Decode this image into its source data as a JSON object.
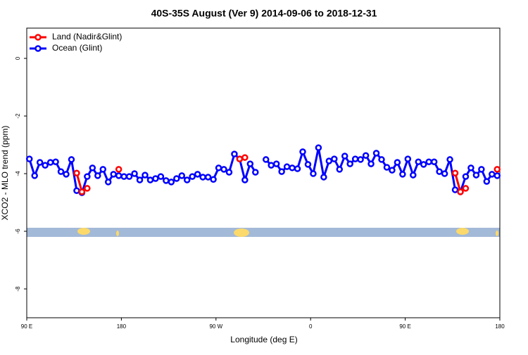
{
  "chart_data": {
    "type": "line",
    "title": "40S-35S August (Ver 9)   2014-09-06 to 2018-12-31",
    "x_label": "Longitude (deg E)",
    "y_label": "XCO2 - MLO trend (ppm)",
    "xlim": [
      90,
      540
    ],
    "xticks": [
      {
        "value": 90,
        "label": "90 E"
      },
      {
        "value": 180,
        "label": "180"
      },
      {
        "value": 270,
        "label": "90 W"
      },
      {
        "value": 360,
        "label": "0"
      },
      {
        "value": 450,
        "label": "90 E"
      },
      {
        "value": 540,
        "label": "180"
      }
    ],
    "ylim": [
      -9,
      1.05
    ],
    "yticks": [
      0,
      -2,
      -4,
      -6,
      -8
    ],
    "grid": false,
    "legend": "top-left",
    "x": [
      92.5,
      97.5,
      102.5,
      107.5,
      112.5,
      117.5,
      122.5,
      127.5,
      132.5,
      137.5,
      142.5,
      147.5,
      152.5,
      157.5,
      162.5,
      167.5,
      172.5,
      177.5,
      182.5,
      187.5,
      192.5,
      197.5,
      202.5,
      207.5,
      212.5,
      217.5,
      222.5,
      227.5,
      232.5,
      237.5,
      242.5,
      247.5,
      252.5,
      257.5,
      262.5,
      267.5,
      272.5,
      277.5,
      282.5,
      287.5,
      292.5,
      297.5,
      302.5,
      307.5,
      312.5,
      317.5,
      322.5,
      327.5,
      332.5,
      337.5,
      342.5,
      347.5,
      352.5,
      357.5,
      362.5,
      367.5,
      372.5,
      377.5,
      382.5,
      387.5,
      392.5,
      397.5,
      402.5,
      407.5,
      412.5,
      417.5,
      422.5,
      427.5,
      432.5,
      437.5,
      442.5,
      447.5,
      452.5,
      457.5,
      462.5,
      467.5,
      472.5,
      477.5,
      482.5,
      487.5,
      492.5,
      497.5,
      502.5,
      507.5,
      512.5,
      517.5,
      522.5,
      527.5,
      532.5,
      537.5
    ],
    "series": [
      {
        "name": "Ocean (Glint)",
        "color": "#0000ff",
        "values": [
          -3.49,
          -4.07,
          -3.61,
          -3.71,
          -3.61,
          -3.59,
          -3.93,
          -4.02,
          -3.51,
          -4.59,
          -4.66,
          -4.1,
          -3.8,
          -4.07,
          -3.85,
          -4.29,
          -4.02,
          -4.07,
          -4.1,
          -4.1,
          -4.0,
          -4.22,
          -4.05,
          -4.22,
          -4.17,
          -4.1,
          -4.24,
          -4.29,
          -4.17,
          -4.07,
          -4.22,
          -4.1,
          -4.02,
          -4.12,
          -4.12,
          -4.2,
          -3.8,
          -3.85,
          -3.95,
          -3.32,
          -3.49,
          -4.22,
          -3.66,
          -3.95,
          null,
          -3.51,
          -3.71,
          -3.66,
          -3.93,
          -3.76,
          -3.8,
          -3.83,
          -3.24,
          -3.68,
          -4.0,
          -3.1,
          -4.12,
          -3.56,
          -3.49,
          -3.85,
          -3.39,
          -3.66,
          -3.49,
          -3.51,
          -3.37,
          -3.66,
          -3.29,
          -3.51,
          -3.78,
          -3.88,
          -3.61,
          -4.02,
          -3.49,
          -4.05,
          -3.59,
          -3.68,
          -3.59,
          -3.59,
          -3.93,
          -4.0,
          -3.51,
          -4.56,
          -4.63,
          -4.1,
          -3.8,
          -4.05,
          -3.85,
          -4.27,
          -4.02,
          -4.07
        ]
      },
      {
        "name": "Land (Nadir&Glint)",
        "color": "#ff0000",
        "values": [
          null,
          null,
          null,
          null,
          null,
          null,
          null,
          null,
          null,
          -3.98,
          -4.63,
          -4.51,
          null,
          null,
          null,
          null,
          null,
          -3.85,
          null,
          null,
          null,
          null,
          null,
          null,
          null,
          null,
          null,
          null,
          null,
          null,
          null,
          null,
          null,
          null,
          null,
          null,
          null,
          null,
          null,
          null,
          -3.49,
          -3.44,
          null,
          null,
          null,
          null,
          null,
          null,
          null,
          null,
          null,
          null,
          null,
          null,
          null,
          null,
          null,
          null,
          null,
          null,
          null,
          null,
          null,
          null,
          null,
          null,
          null,
          null,
          null,
          null,
          null,
          null,
          null,
          null,
          null,
          null,
          null,
          null,
          null,
          null,
          null,
          -3.98,
          -4.63,
          -4.51,
          null,
          null,
          null,
          null,
          null,
          -3.85
        ]
      }
    ]
  }
}
